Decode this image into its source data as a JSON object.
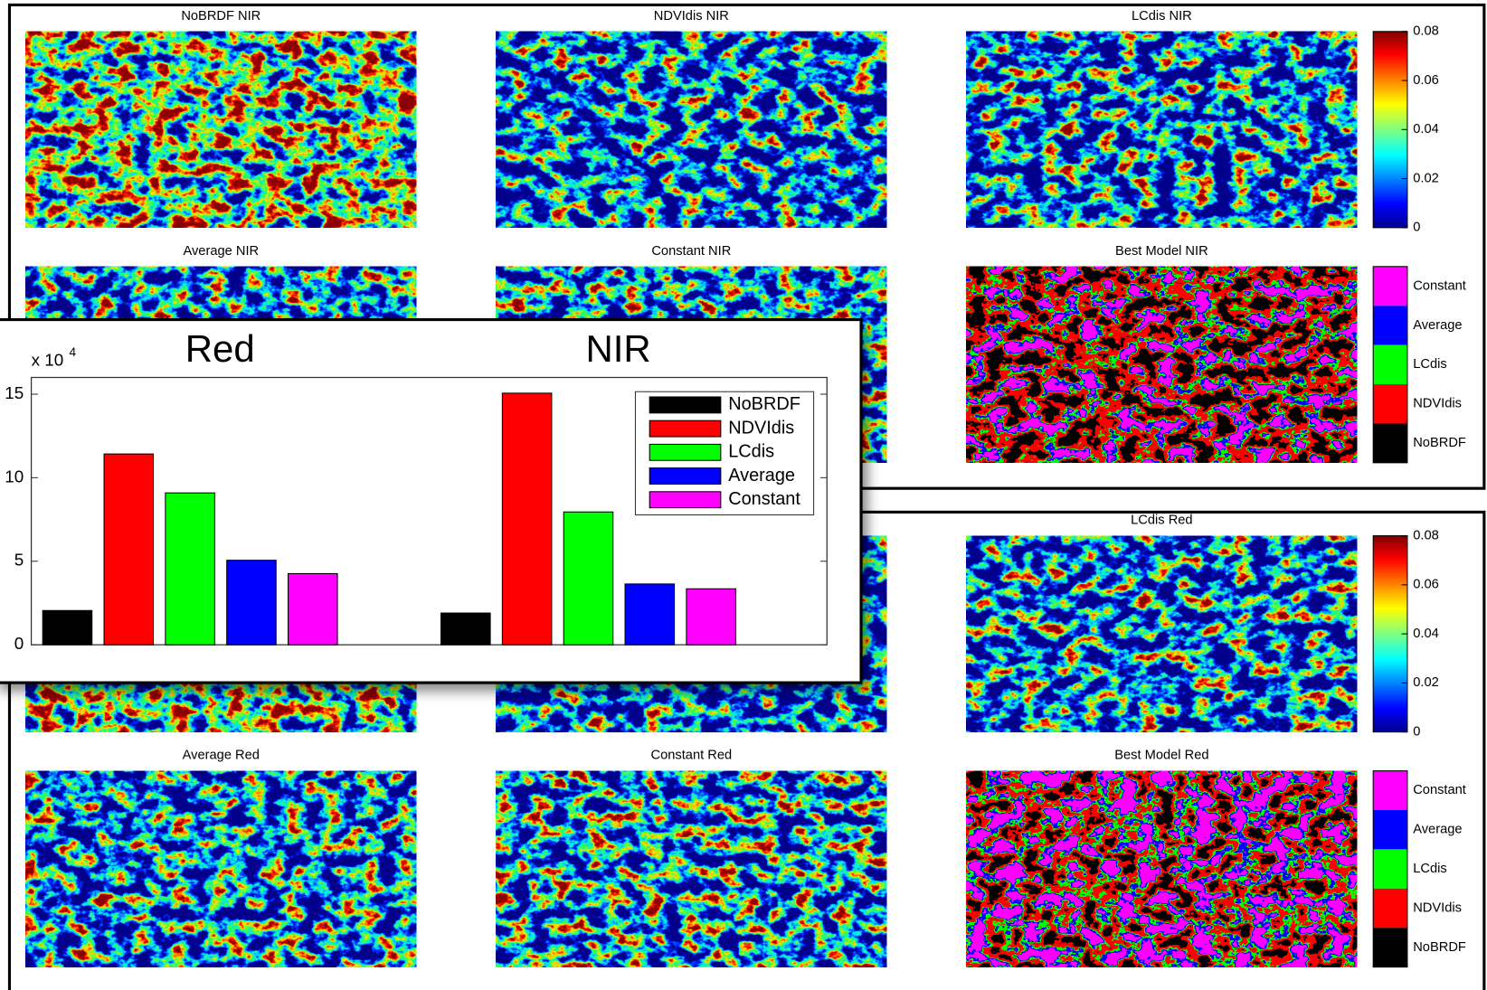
{
  "nir_figure": {
    "panel_titles": [
      "NoBRDF NIR",
      "NDVIdis NIR",
      "LCdis NIR",
      "Average NIR",
      "Constant NIR",
      "Best Model NIR"
    ],
    "colorbar_lim": [
      0,
      0.08
    ],
    "colorbar_ticks": [
      0,
      0.02,
      0.04,
      0.06,
      0.08
    ],
    "class_legend": [
      "Constant",
      "Average",
      "LCdis",
      "NDVIdis",
      "NoBRDF"
    ],
    "class_colors": [
      "#ff00ff",
      "#0000ff",
      "#00ff00",
      "#ff0000",
      "#000000"
    ]
  },
  "red_figure": {
    "panel_titles": [
      "LCdis Red",
      "Average Red",
      "Constant Red",
      "Best Model Red"
    ],
    "colorbar_lim": [
      0,
      0.08
    ],
    "colorbar_ticks": [
      0,
      0.02,
      0.04,
      0.06,
      0.08
    ],
    "class_legend": [
      "Constant",
      "Average",
      "LCdis",
      "NDVIdis",
      "NoBRDF"
    ],
    "class_colors": [
      "#ff00ff",
      "#0000ff",
      "#00ff00",
      "#ff0000",
      "#000000"
    ]
  },
  "chart_data": {
    "type": "bar",
    "categories": [
      "Red",
      "NIR"
    ],
    "y_scale_label": {
      "base": "x 10",
      "exponent": "4"
    },
    "series": [
      {
        "name": "NoBRDF",
        "color": "#000000",
        "values": [
          2.05,
          1.9
        ]
      },
      {
        "name": "NDVIdis",
        "color": "#ff0000",
        "values": [
          11.42,
          15.06
        ]
      },
      {
        "name": "LCdis",
        "color": "#00ff00",
        "values": [
          9.09,
          7.95
        ]
      },
      {
        "name": "Average",
        "color": "#0000ff",
        "values": [
          5.06,
          3.64
        ]
      },
      {
        "name": "Constant",
        "color": "#ff00ff",
        "values": [
          4.26,
          3.35
        ]
      }
    ],
    "ylim": [
      0,
      16
    ],
    "yticks": [
      0,
      5,
      10,
      15
    ],
    "legend": "upper right"
  }
}
